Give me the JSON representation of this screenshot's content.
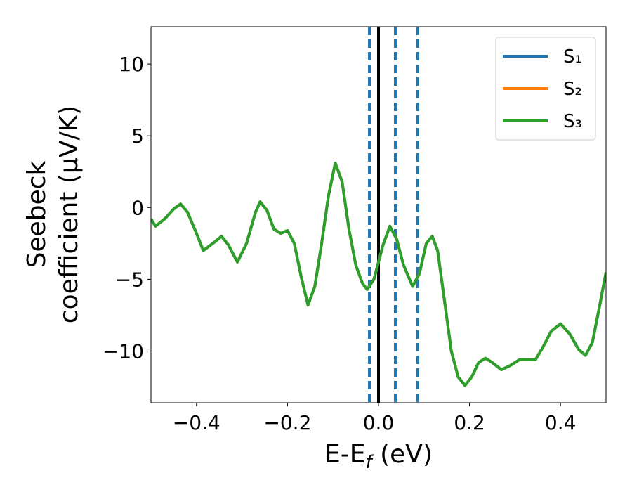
{
  "chart_data": {
    "type": "line",
    "x_label": [
      "E-E",
      "f",
      " (eV)"
    ],
    "y_label": [
      "Seebeck",
      "coefficient  (μV/K)"
    ],
    "x": [
      -0.5,
      -0.49,
      -0.47,
      -0.45,
      -0.435,
      -0.42,
      -0.4,
      -0.385,
      -0.36,
      -0.345,
      -0.33,
      -0.31,
      -0.29,
      -0.27,
      -0.26,
      -0.245,
      -0.23,
      -0.215,
      -0.2,
      -0.185,
      -0.17,
      -0.155,
      -0.14,
      -0.125,
      -0.11,
      -0.095,
      -0.08,
      -0.065,
      -0.05,
      -0.035,
      -0.025,
      -0.01,
      0.0,
      0.01,
      0.025,
      0.04,
      0.055,
      0.075,
      0.09,
      0.105,
      0.118,
      0.13,
      0.145,
      0.16,
      0.175,
      0.19,
      0.205,
      0.22,
      0.235,
      0.25,
      0.27,
      0.29,
      0.31,
      0.325,
      0.345,
      0.36,
      0.38,
      0.4,
      0.42,
      0.44,
      0.455,
      0.47,
      0.485,
      0.5
    ],
    "series": [
      {
        "name": "S₁",
        "color": "#1f77b4",
        "values": [
          -0.8,
          -1.3,
          -0.8,
          -0.1,
          0.25,
          -0.3,
          -1.8,
          -3.0,
          -2.4,
          -2.0,
          -2.6,
          -3.8,
          -2.5,
          -0.3,
          0.4,
          -0.2,
          -1.5,
          -1.8,
          -1.6,
          -2.5,
          -4.8,
          -6.8,
          -5.5,
          -2.5,
          0.8,
          3.1,
          1.8,
          -1.5,
          -4.0,
          -5.3,
          -5.7,
          -5.0,
          -3.8,
          -2.6,
          -1.3,
          -2.2,
          -4.0,
          -5.5,
          -4.6,
          -2.5,
          -2.0,
          -3.0,
          -6.5,
          -10.0,
          -11.8,
          -12.4,
          -11.8,
          -10.8,
          -10.5,
          -10.8,
          -11.3,
          -11.0,
          -10.6,
          -10.6,
          -10.6,
          -9.8,
          -8.6,
          -8.1,
          -8.8,
          -9.9,
          -10.3,
          -9.4,
          -7.0,
          -4.5
        ]
      },
      {
        "name": "S₂",
        "color": "#ff7f0e",
        "values": [
          -0.8,
          -1.3,
          -0.8,
          -0.1,
          0.25,
          -0.3,
          -1.8,
          -3.0,
          -2.4,
          -2.0,
          -2.6,
          -3.8,
          -2.5,
          -0.3,
          0.4,
          -0.2,
          -1.5,
          -1.8,
          -1.6,
          -2.5,
          -4.8,
          -6.8,
          -5.5,
          -2.5,
          0.8,
          3.1,
          1.8,
          -1.5,
          -4.0,
          -5.3,
          -5.7,
          -5.0,
          -3.8,
          -2.6,
          -1.3,
          -2.2,
          -4.0,
          -5.5,
          -4.6,
          -2.5,
          -2.0,
          -3.0,
          -6.5,
          -10.0,
          -11.8,
          -12.4,
          -11.8,
          -10.8,
          -10.5,
          -10.8,
          -11.3,
          -11.0,
          -10.6,
          -10.6,
          -10.6,
          -9.8,
          -8.6,
          -8.1,
          -8.8,
          -9.9,
          -10.3,
          -9.4,
          -7.0,
          -4.5
        ]
      },
      {
        "name": "S₃",
        "color": "#2ca02c",
        "values": [
          -0.8,
          -1.3,
          -0.8,
          -0.1,
          0.25,
          -0.3,
          -1.8,
          -3.0,
          -2.4,
          -2.0,
          -2.6,
          -3.8,
          -2.5,
          -0.3,
          0.4,
          -0.2,
          -1.5,
          -1.8,
          -1.6,
          -2.5,
          -4.8,
          -6.8,
          -5.5,
          -2.5,
          0.8,
          3.1,
          1.8,
          -1.5,
          -4.0,
          -5.3,
          -5.7,
          -5.0,
          -3.8,
          -2.6,
          -1.3,
          -2.2,
          -4.0,
          -5.5,
          -4.6,
          -2.5,
          -2.0,
          -3.0,
          -6.5,
          -10.0,
          -11.8,
          -12.4,
          -11.8,
          -10.8,
          -10.5,
          -10.8,
          -11.3,
          -11.0,
          -10.6,
          -10.6,
          -10.6,
          -9.8,
          -8.6,
          -8.1,
          -8.8,
          -9.9,
          -10.3,
          -9.4,
          -7.0,
          -4.5
        ]
      }
    ],
    "vlines": [
      {
        "x": -0.02,
        "color": "#1f77b4",
        "style": "dashed"
      },
      {
        "x": 0.037,
        "color": "#1f77b4",
        "style": "dashed"
      },
      {
        "x": 0.086,
        "color": "#1f77b4",
        "style": "dashed"
      },
      {
        "x": 0,
        "color": "#000000",
        "style": "solid"
      }
    ],
    "xlim": [
      -0.5,
      0.5
    ],
    "ylim": [
      -13.6,
      12.6
    ],
    "xticks": [
      {
        "value": -0.4,
        "label": "−0.4"
      },
      {
        "value": -0.2,
        "label": "−0.2"
      },
      {
        "value": 0,
        "label": "0.0"
      },
      0.2,
      0.4
    ],
    "yticks": [
      {
        "value": -10,
        "label": "−10"
      },
      {
        "value": -5,
        "label": "−5"
      },
      0,
      5,
      10
    ],
    "grid": false,
    "legend": "upper right"
  }
}
